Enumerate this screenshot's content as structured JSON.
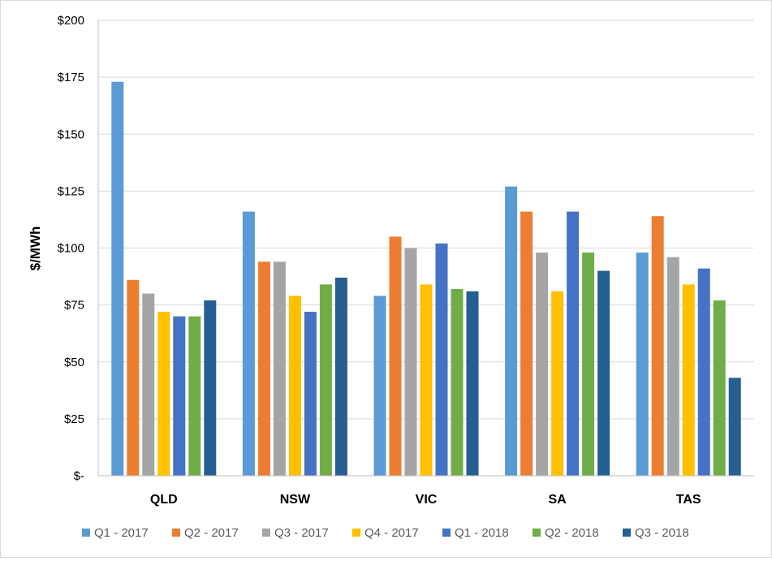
{
  "chart_data": {
    "type": "bar",
    "title": "",
    "xlabel": "",
    "ylabel": "$/MWh",
    "ylim": [
      0,
      200
    ],
    "yticks": [
      0,
      25,
      50,
      75,
      100,
      125,
      150,
      175,
      200
    ],
    "ytick_labels": [
      "$-",
      "$25",
      "$50",
      "$75",
      "$100",
      "$125",
      "$150",
      "$175",
      "$200"
    ],
    "grid": true,
    "legend_position": "bottom",
    "categories": [
      "QLD",
      "NSW",
      "VIC",
      "SA",
      "TAS"
    ],
    "series": [
      {
        "name": "Q1 - 2017",
        "color": "#5b9bd5",
        "values": [
          173,
          116,
          79,
          127,
          98
        ]
      },
      {
        "name": "Q2 - 2017",
        "color": "#ed7d31",
        "values": [
          86,
          94,
          105,
          116,
          114
        ]
      },
      {
        "name": "Q3 - 2017",
        "color": "#a5a5a5",
        "values": [
          80,
          94,
          100,
          98,
          96
        ]
      },
      {
        "name": "Q4 - 2017",
        "color": "#ffc000",
        "values": [
          72,
          79,
          84,
          81,
          84
        ]
      },
      {
        "name": "Q1 - 2018",
        "color": "#4472c4",
        "values": [
          70,
          72,
          102,
          116,
          91
        ]
      },
      {
        "name": "Q2 - 2018",
        "color": "#70ad47",
        "values": [
          70,
          84,
          82,
          98,
          77
        ]
      },
      {
        "name": "Q3 - 2018",
        "color": "#255e91",
        "values": [
          77,
          87,
          81,
          90,
          43
        ]
      }
    ]
  }
}
